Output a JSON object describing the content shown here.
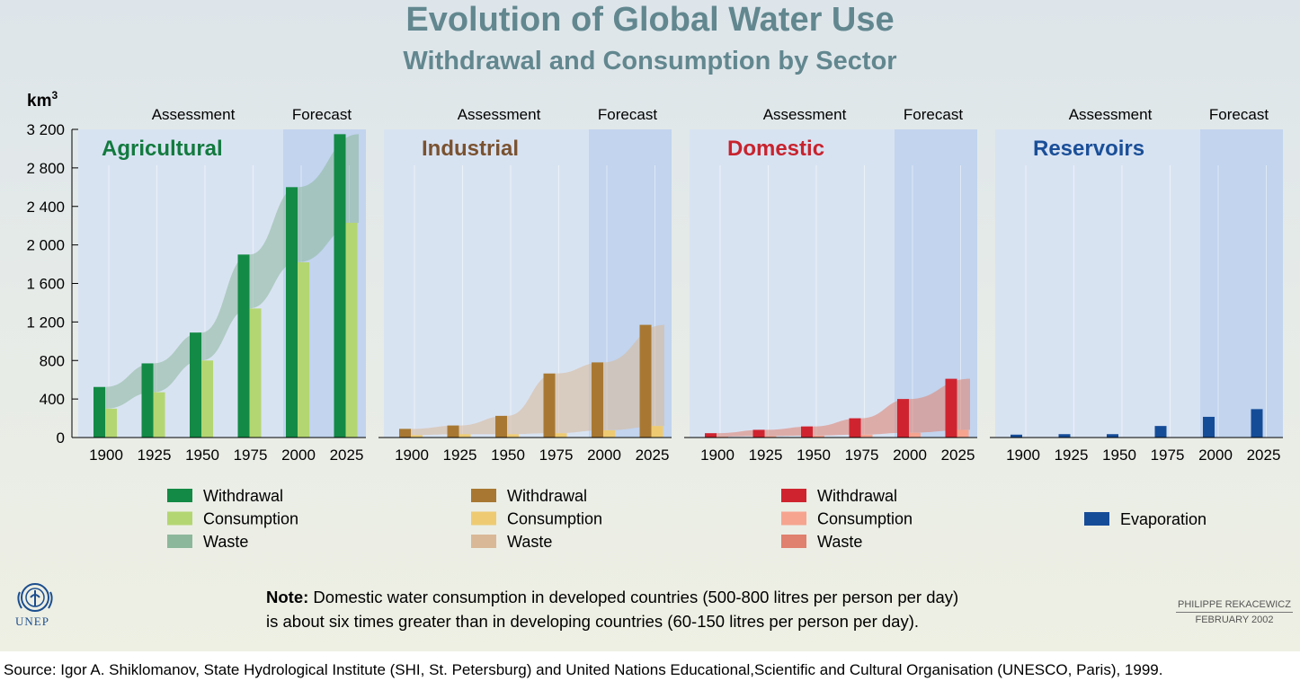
{
  "title": "Evolution of Global Water Use",
  "subtitle": "Withdrawal and Consumption by Sector",
  "unit": "km",
  "unit_sup": "3",
  "period_labels": {
    "assessment": "Assessment",
    "forecast": "Forecast"
  },
  "note": {
    "label": "Note:",
    "line1": " Domestic water consumption in developed countries (500-800 litres per person per day)",
    "line2": "is about six times greater than in developing countries (60-150 litres per person per day)."
  },
  "credit": {
    "author": "PHILIPPE REKACEWICZ",
    "date": "FEBRUARY 2002"
  },
  "logo_text": "UNEP",
  "source": "Source: Igor A. Shiklomanov, State Hydrological Institute (SHI, St. Petersburg) and United Nations Educational,Scientific and Cultural Organisation (UNESCO, Paris), 1999.",
  "colors": {
    "agricultural": {
      "title": "#127a3e",
      "withdrawal": "#138a45",
      "consumption": "#b4d672",
      "waste": "#8db79b"
    },
    "industrial": {
      "title": "#7a5230",
      "withdrawal": "#a87832",
      "consumption": "#eecb73",
      "waste": "#d9b898"
    },
    "domestic": {
      "title": "#c8232e",
      "withdrawal": "#cf2430",
      "consumption": "#f6a48f",
      "waste": "#e0806e"
    },
    "reservoirs": {
      "title": "#1a4f98",
      "evaporation": "#154c98"
    },
    "panel_bg": "#c2d4ee",
    "panel_bg_light": "#d8e3f2"
  },
  "chart_data": [
    {
      "type": "bar",
      "title": "Agricultural",
      "categories": [
        "1900",
        "1925",
        "1950",
        "1975",
        "2000",
        "2025"
      ],
      "ylim": [
        0,
        3200
      ],
      "yticks": [
        "0",
        "400",
        "800",
        "1 200",
        "1 600",
        "2 000",
        "2 400",
        "2 800",
        "3 200"
      ],
      "ytick_values": [
        0,
        400,
        800,
        1200,
        1600,
        2000,
        2400,
        2800,
        3200
      ],
      "series": [
        {
          "name": "Withdrawal",
          "values": [
            525,
            770,
            1090,
            1900,
            2600,
            3150
          ]
        },
        {
          "name": "Consumption",
          "values": [
            300,
            470,
            800,
            1340,
            1820,
            2230
          ]
        }
      ],
      "legend": [
        "Withdrawal",
        "Consumption",
        "Waste"
      ]
    },
    {
      "type": "bar",
      "title": "Industrial",
      "categories": [
        "1900",
        "1925",
        "1950",
        "1975",
        "2000",
        "2025"
      ],
      "ylim": [
        0,
        3200
      ],
      "series": [
        {
          "name": "Withdrawal",
          "values": [
            90,
            125,
            225,
            665,
            780,
            1170
          ]
        },
        {
          "name": "Consumption",
          "values": [
            25,
            35,
            35,
            45,
            75,
            120
          ]
        }
      ],
      "legend": [
        "Withdrawal",
        "Consumption",
        "Waste"
      ]
    },
    {
      "type": "bar",
      "title": "Domestic",
      "categories": [
        "1900",
        "1925",
        "1950",
        "1975",
        "2000",
        "2025"
      ],
      "ylim": [
        0,
        3200
      ],
      "series": [
        {
          "name": "Withdrawal",
          "values": [
            45,
            80,
            115,
            200,
            400,
            610
          ]
        },
        {
          "name": "Consumption",
          "values": [
            10,
            15,
            20,
            30,
            50,
            80
          ]
        }
      ],
      "legend": [
        "Withdrawal",
        "Consumption",
        "Waste"
      ]
    },
    {
      "type": "bar",
      "title": "Reservoirs",
      "categories": [
        "1900",
        "1925",
        "1950",
        "1975",
        "2000",
        "2025"
      ],
      "ylim": [
        0,
        3200
      ],
      "series": [
        {
          "name": "Evaporation",
          "values": [
            30,
            35,
            35,
            120,
            215,
            295
          ]
        }
      ],
      "legend": [
        "Evaporation"
      ]
    }
  ]
}
